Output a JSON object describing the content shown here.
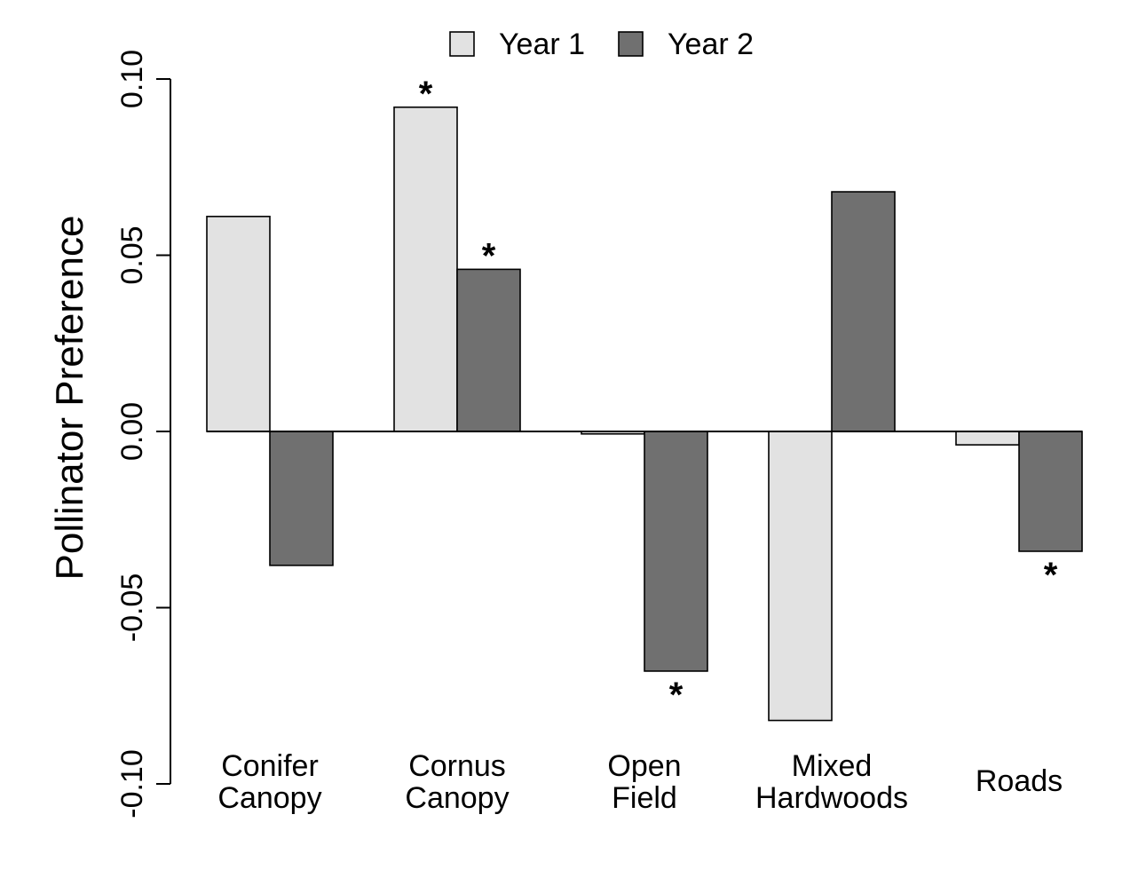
{
  "chart_data": {
    "type": "bar",
    "ylabel": "Pollinator Preference",
    "xlabel": "",
    "ylim": [
      -0.1,
      0.1
    ],
    "yticks": [
      "-0.10",
      "-0.05",
      "0.00",
      "0.05",
      "0.10"
    ],
    "ytick_values": [
      -0.1,
      -0.05,
      0.0,
      0.05,
      0.1
    ],
    "legend_placement": "top-center",
    "categories": [
      [
        "Conifer",
        "Canopy"
      ],
      [
        "Cornus",
        "Canopy"
      ],
      [
        "Open",
        "Field"
      ],
      [
        "Mixed",
        "Hardwoods"
      ],
      [
        "Roads"
      ]
    ],
    "series": [
      {
        "name": "Year 1",
        "color": "#e2e2e2",
        "values": [
          0.061,
          0.092,
          -0.0007,
          -0.082,
          -0.0038
        ],
        "significant": [
          "",
          "*",
          "",
          "",
          ""
        ]
      },
      {
        "name": "Year 2",
        "color": "#707070",
        "values": [
          -0.038,
          0.046,
          -0.068,
          0.068,
          -0.034
        ],
        "significant": [
          "",
          "*",
          "*",
          "",
          "*"
        ]
      }
    ]
  }
}
